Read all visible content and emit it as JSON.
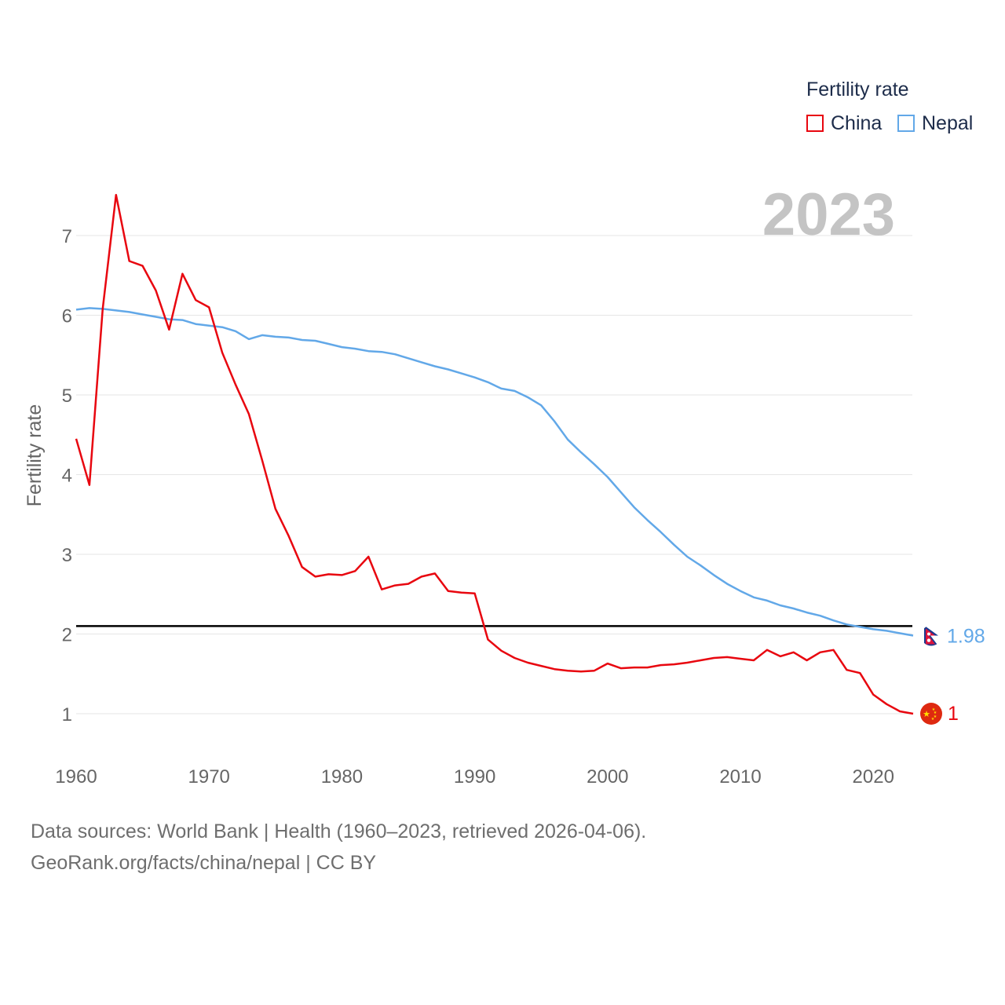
{
  "legend": {
    "title": "Fertility rate",
    "items": [
      {
        "label": "China",
        "color": "#e8060f"
      },
      {
        "label": "Nepal",
        "color": "#62a8e8"
      }
    ]
  },
  "footer": {
    "line1": "Data sources: World Bank | Health (1960–2023, retrieved 2026-04-06).",
    "line2": "GeoRank.org/facts/china/nepal | CC BY"
  },
  "chart_data": {
    "type": "line",
    "title": "Fertility rate",
    "year_label": "2023",
    "ylabel": "Fertility rate",
    "xlabel": "",
    "xlim": [
      1960,
      2023
    ],
    "ylim": [
      0.6,
      7.7
    ],
    "x_ticks": [
      "1960",
      "1970",
      "1980",
      "1990",
      "2000",
      "2010",
      "2020"
    ],
    "y_ticks": [
      "1",
      "2",
      "3",
      "4",
      "5",
      "6",
      "7"
    ],
    "reference_line": {
      "value": 2.1,
      "color": "#000000"
    },
    "series": [
      {
        "name": "China",
        "color": "#e8060f",
        "end_label": "1",
        "flag": "china-flag-icon",
        "x": [
          1960,
          1961,
          1962,
          1963,
          1964,
          1965,
          1966,
          1967,
          1968,
          1969,
          1970,
          1971,
          1972,
          1973,
          1974,
          1975,
          1976,
          1977,
          1978,
          1979,
          1980,
          1981,
          1982,
          1983,
          1984,
          1985,
          1986,
          1987,
          1988,
          1989,
          1990,
          1991,
          1992,
          1993,
          1994,
          1995,
          1996,
          1997,
          1998,
          1999,
          2000,
          2001,
          2002,
          2003,
          2004,
          2005,
          2006,
          2007,
          2008,
          2009,
          2010,
          2011,
          2012,
          2013,
          2014,
          2015,
          2016,
          2017,
          2018,
          2019,
          2020,
          2021,
          2022,
          2023
        ],
        "values": [
          4.45,
          3.87,
          6.08,
          7.51,
          6.68,
          6.62,
          6.31,
          5.82,
          6.52,
          6.19,
          6.1,
          5.53,
          5.13,
          4.76,
          4.18,
          3.57,
          3.23,
          2.84,
          2.72,
          2.75,
          2.74,
          2.79,
          2.97,
          2.56,
          2.61,
          2.63,
          2.72,
          2.76,
          2.54,
          2.52,
          2.51,
          1.93,
          1.79,
          1.7,
          1.64,
          1.6,
          1.56,
          1.54,
          1.53,
          1.54,
          1.63,
          1.57,
          1.58,
          1.58,
          1.61,
          1.62,
          1.64,
          1.67,
          1.7,
          1.71,
          1.69,
          1.67,
          1.8,
          1.72,
          1.77,
          1.67,
          1.77,
          1.8,
          1.55,
          1.51,
          1.24,
          1.12,
          1.03,
          1.0
        ]
      },
      {
        "name": "Nepal",
        "color": "#62a8e8",
        "end_label": "1.98",
        "flag": "nepal-flag-icon",
        "x": [
          1960,
          1961,
          1962,
          1963,
          1964,
          1965,
          1966,
          1967,
          1968,
          1969,
          1970,
          1971,
          1972,
          1973,
          1974,
          1975,
          1976,
          1977,
          1978,
          1979,
          1980,
          1981,
          1982,
          1983,
          1984,
          1985,
          1986,
          1987,
          1988,
          1989,
          1990,
          1991,
          1992,
          1993,
          1994,
          1995,
          1996,
          1997,
          1998,
          1999,
          2000,
          2001,
          2002,
          2003,
          2004,
          2005,
          2006,
          2007,
          2008,
          2009,
          2010,
          2011,
          2012,
          2013,
          2014,
          2015,
          2016,
          2017,
          2018,
          2019,
          2020,
          2021,
          2022,
          2023
        ],
        "values": [
          6.07,
          6.09,
          6.08,
          6.06,
          6.04,
          6.01,
          5.98,
          5.95,
          5.94,
          5.89,
          5.87,
          5.85,
          5.8,
          5.7,
          5.75,
          5.73,
          5.72,
          5.69,
          5.68,
          5.64,
          5.6,
          5.58,
          5.55,
          5.54,
          5.51,
          5.46,
          5.41,
          5.36,
          5.32,
          5.27,
          5.22,
          5.16,
          5.08,
          5.05,
          4.97,
          4.87,
          4.67,
          4.44,
          4.28,
          4.13,
          3.97,
          3.78,
          3.59,
          3.43,
          3.28,
          3.12,
          2.97,
          2.86,
          2.74,
          2.63,
          2.54,
          2.46,
          2.42,
          2.36,
          2.32,
          2.27,
          2.23,
          2.17,
          2.12,
          2.09,
          2.06,
          2.04,
          2.01,
          1.98
        ]
      }
    ]
  }
}
